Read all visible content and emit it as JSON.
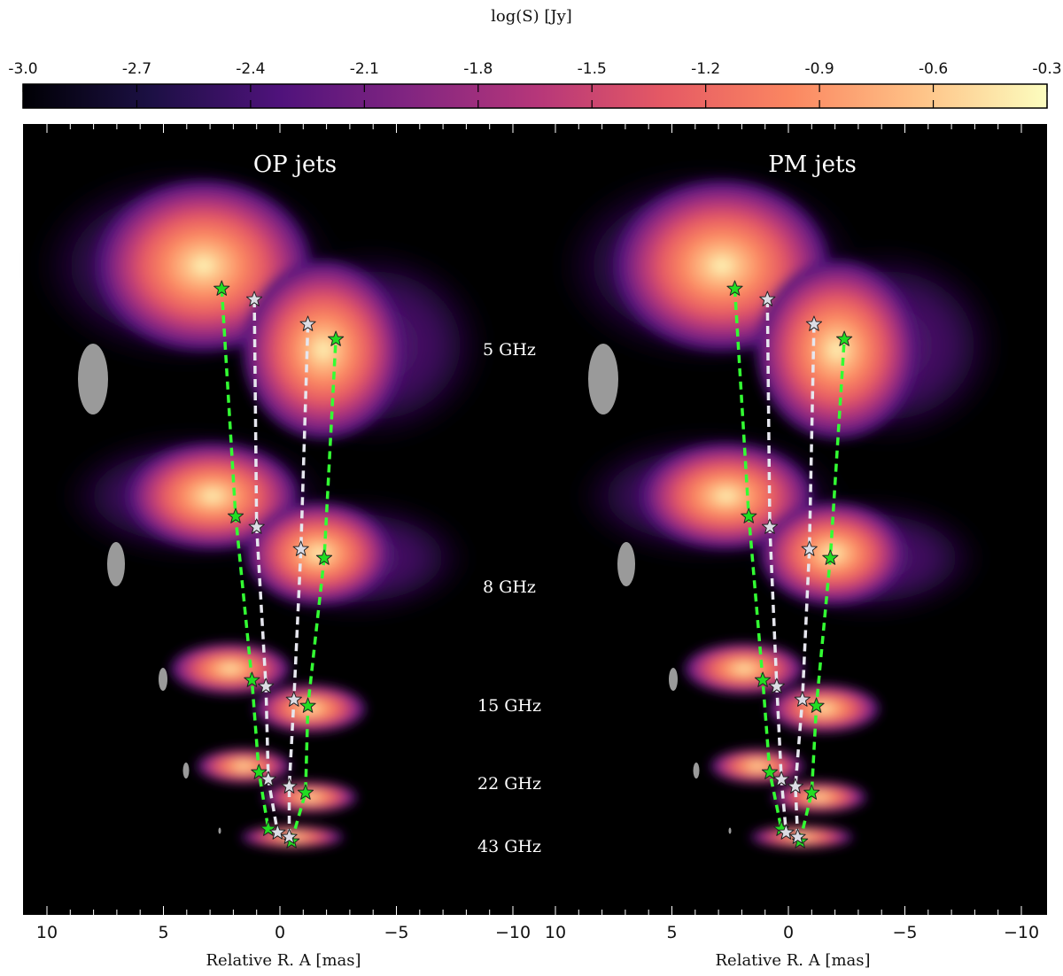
{
  "chart_data": {
    "type": "heatmap",
    "colorbar": {
      "label": "log(S) [Jy]",
      "range": [
        -3.0,
        -0.3
      ],
      "ticks": [
        "-3.0",
        "-2.7",
        "-2.4",
        "-2.1",
        "-1.8",
        "-1.5",
        "-1.2",
        "-0.9",
        "-0.6",
        "-0.3"
      ],
      "colormap": [
        "#000004",
        "#1c1044",
        "#4f127b",
        "#812581",
        "#b5367a",
        "#e55964",
        "#fb8761",
        "#fec287",
        "#fcfdbf"
      ]
    },
    "xlabel": "Relative R. A [mas]",
    "xlim": [
      11,
      -11
    ],
    "xticks": [
      "10",
      "5",
      "0",
      "−5",
      "−10"
    ],
    "frequency_labels": [
      "5 GHz",
      "8 GHz",
      "15 GHz",
      "22 GHz",
      "43 GHz"
    ],
    "panels": [
      {
        "title": "OP jets",
        "components_green": [
          [
            2.5,
            1
          ],
          [
            1.9,
            2
          ],
          [
            1.2,
            3
          ],
          [
            0.9,
            4
          ],
          [
            0.5,
            5
          ],
          [
            -0.5,
            5
          ],
          [
            -1.1,
            4
          ],
          [
            -1.2,
            3
          ],
          [
            -1.9,
            2
          ],
          [
            -2.4,
            1
          ]
        ],
        "components_white": [
          [
            1.1,
            1
          ],
          [
            1.0,
            2
          ],
          [
            0.6,
            3
          ],
          [
            0.5,
            4
          ],
          [
            0.1,
            5
          ],
          [
            -0.4,
            5
          ],
          [
            -0.4,
            4
          ],
          [
            -0.6,
            3
          ],
          [
            -0.9,
            2
          ],
          [
            -1.2,
            1
          ]
        ]
      },
      {
        "title": "PM jets",
        "components_green": [
          [
            2.3,
            1
          ],
          [
            1.7,
            2
          ],
          [
            1.1,
            3
          ],
          [
            0.8,
            4
          ],
          [
            0.3,
            5
          ],
          [
            -0.5,
            5
          ],
          [
            -1.0,
            4
          ],
          [
            -1.2,
            3
          ],
          [
            -1.8,
            2
          ],
          [
            -2.4,
            1
          ]
        ],
        "components_white": [
          [
            0.9,
            1
          ],
          [
            0.8,
            2
          ],
          [
            0.5,
            3
          ],
          [
            0.3,
            4
          ],
          [
            0.1,
            5
          ],
          [
            -0.4,
            5
          ],
          [
            -0.3,
            4
          ],
          [
            -0.6,
            3
          ],
          [
            -0.9,
            2
          ],
          [
            -1.1,
            1
          ]
        ]
      }
    ],
    "colors": {
      "green_star": "#22dd22",
      "white_star": "#dcdce4",
      "green_line": "#33ff33",
      "white_line": "#e6e6ee",
      "beam": "#9a9a9a"
    }
  }
}
